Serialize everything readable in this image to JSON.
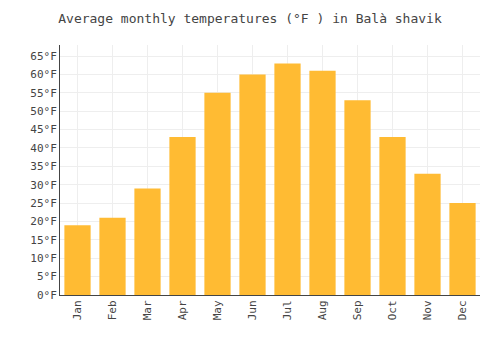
{
  "chart_data": {
    "type": "bar",
    "title": "Average monthly temperatures (°F ) in Balà shavik",
    "categories": [
      "Jan",
      "Feb",
      "Mar",
      "Apr",
      "May",
      "Jun",
      "Jul",
      "Aug",
      "Sep",
      "Oct",
      "Nov",
      "Dec"
    ],
    "values": [
      19,
      21,
      29,
      43,
      55,
      60,
      63,
      61,
      53,
      43,
      33,
      25
    ],
    "color": "#FFBB33",
    "ylim": [
      0,
      68
    ],
    "yticks": [
      {
        "value": 0,
        "label": "0°F"
      },
      {
        "value": 5,
        "label": "5°F"
      },
      {
        "value": 10,
        "label": "10°F"
      },
      {
        "value": 15,
        "label": "15°F"
      },
      {
        "value": 20,
        "label": "20°F"
      },
      {
        "value": 25,
        "label": "25°F"
      },
      {
        "value": 30,
        "label": "30°F"
      },
      {
        "value": 35,
        "label": "35°F"
      },
      {
        "value": 40,
        "label": "40°F"
      },
      {
        "value": 45,
        "label": "45°F"
      },
      {
        "value": 50,
        "label": "50°F"
      },
      {
        "value": 55,
        "label": "55°F"
      },
      {
        "value": 60,
        "label": "60°F"
      },
      {
        "value": 65,
        "label": "65°F"
      }
    ],
    "grid": true
  }
}
